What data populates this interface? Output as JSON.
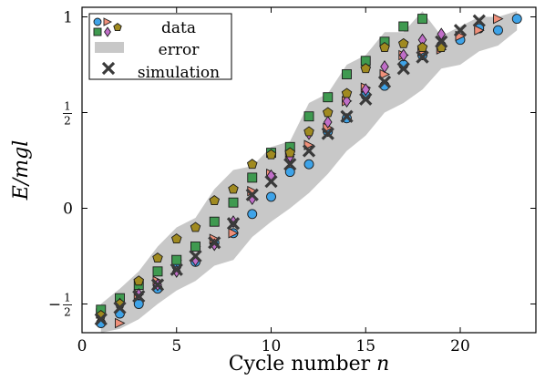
{
  "chart_data": {
    "type": "scatter",
    "xlabel": "Cycle number n",
    "ylabel": "E/mgl",
    "xlim": [
      0,
      24
    ],
    "ylim": [
      -0.65,
      1.05
    ],
    "xticks": [
      {
        "value": 0,
        "label": "0"
      },
      {
        "value": 5,
        "label": "5"
      },
      {
        "value": 10,
        "label": "10"
      },
      {
        "value": 15,
        "label": "15"
      },
      {
        "value": 20,
        "label": "20"
      }
    ],
    "yticks": [
      {
        "value": -0.5,
        "label": "−1/2"
      },
      {
        "value": 0,
        "label": "0"
      },
      {
        "value": 0.5,
        "label": "1/2"
      },
      {
        "value": 1,
        "label": "1"
      }
    ],
    "grid": false,
    "legend_position": "top-left",
    "legend": [
      {
        "label": "data",
        "kind": "markers"
      },
      {
        "label": "error",
        "kind": "band"
      },
      {
        "label": "simulation",
        "kind": "cross"
      }
    ],
    "colors": {
      "circle": "#3ea3e8",
      "triangle": "#f0907a",
      "square": "#3f9a50",
      "diamond": "#c06ec8",
      "pentagon": "#a08a20",
      "band": "#c8c8c8",
      "cross": "#3a3a3a"
    },
    "error_band": {
      "x": [
        1,
        2,
        3,
        4,
        5,
        6,
        7,
        8,
        9,
        10,
        11,
        12,
        13,
        14,
        15,
        16,
        17,
        18,
        19,
        20,
        21,
        22,
        23
      ],
      "upper": [
        -0.5,
        -0.42,
        -0.33,
        -0.2,
        -0.1,
        -0.05,
        0.1,
        0.2,
        0.22,
        0.32,
        0.35,
        0.55,
        0.6,
        0.75,
        0.8,
        0.92,
        0.92,
        1.03,
        0.9,
        0.95,
        1.0,
        1.0,
        1.03
      ],
      "lower": [
        -0.65,
        -0.63,
        -0.58,
        -0.5,
        -0.43,
        -0.38,
        -0.3,
        -0.27,
        -0.15,
        -0.07,
        0.0,
        0.08,
        0.18,
        0.3,
        0.38,
        0.5,
        0.55,
        0.62,
        0.73,
        0.75,
        0.82,
        0.85,
        0.93
      ]
    },
    "series": [
      {
        "marker": "circle",
        "color": "#3ea3e8",
        "x": [
          1,
          2,
          3,
          4,
          5,
          6,
          7,
          8,
          9,
          10,
          11,
          12,
          13,
          14,
          15,
          16,
          17,
          18,
          19,
          20,
          21,
          22,
          23
        ],
        "y": [
          -0.6,
          -0.55,
          -0.5,
          -0.42,
          -0.3,
          -0.28,
          -0.18,
          -0.13,
          -0.03,
          0.06,
          0.19,
          0.23,
          0.4,
          0.47,
          0.59,
          0.64,
          0.75,
          0.8,
          0.85,
          0.88,
          0.94,
          0.93,
          0.99
        ]
      },
      {
        "marker": "triangle",
        "color": "#f0907a",
        "x": [
          1,
          2,
          3,
          4,
          5,
          6,
          7,
          8,
          9,
          10,
          11,
          12,
          13,
          14,
          15,
          16,
          17,
          18,
          19,
          20,
          21,
          22
        ],
        "y": [
          -0.55,
          -0.6,
          -0.45,
          -0.38,
          -0.27,
          -0.2,
          -0.16,
          -0.13,
          0.09,
          0.18,
          0.28,
          0.33,
          0.42,
          0.56,
          0.63,
          0.7,
          0.8,
          0.82,
          0.83,
          0.9,
          0.93,
          0.99
        ]
      },
      {
        "marker": "square",
        "color": "#3f9a50",
        "x": [
          1,
          2,
          3,
          4,
          5,
          6,
          7,
          8,
          9,
          10,
          11,
          12,
          13,
          14,
          15,
          16,
          17,
          18
        ],
        "y": [
          -0.53,
          -0.47,
          -0.4,
          -0.33,
          -0.27,
          -0.2,
          -0.07,
          0.03,
          0.16,
          0.29,
          0.32,
          0.48,
          0.58,
          0.7,
          0.77,
          0.87,
          0.95,
          0.99
        ]
      },
      {
        "marker": "diamond",
        "color": "#c06ec8",
        "x": [
          2,
          3,
          4,
          5,
          6,
          7,
          8,
          9,
          10,
          11,
          12,
          13,
          14,
          15,
          16,
          17,
          18,
          19
        ],
        "y": [
          -0.5,
          -0.45,
          -0.4,
          -0.33,
          -0.27,
          -0.19,
          -0.07,
          0.05,
          0.17,
          0.27,
          0.39,
          0.45,
          0.56,
          0.62,
          0.74,
          0.8,
          0.88,
          0.91
        ]
      },
      {
        "marker": "pentagon",
        "color": "#a08a20",
        "x": [
          1,
          2,
          3,
          4,
          5,
          6,
          7,
          8,
          9,
          10,
          11,
          12,
          13,
          14,
          15,
          16,
          17,
          18,
          19
        ],
        "y": [
          -0.56,
          -0.5,
          -0.38,
          -0.26,
          -0.16,
          -0.1,
          0.04,
          0.1,
          0.23,
          0.28,
          0.29,
          0.4,
          0.5,
          0.6,
          0.73,
          0.84,
          0.86,
          0.84,
          0.84
        ]
      }
    ],
    "simulation": {
      "x": [
        1,
        2,
        3,
        4,
        5,
        6,
        7,
        8,
        9,
        10,
        11,
        12,
        13,
        14,
        15,
        16,
        17,
        18,
        19,
        20,
        21
      ],
      "y": [
        -0.58,
        -0.52,
        -0.46,
        -0.4,
        -0.32,
        -0.25,
        -0.18,
        -0.08,
        0.07,
        0.14,
        0.23,
        0.3,
        0.39,
        0.48,
        0.57,
        0.66,
        0.73,
        0.79,
        0.87,
        0.93,
        0.98
      ]
    }
  }
}
